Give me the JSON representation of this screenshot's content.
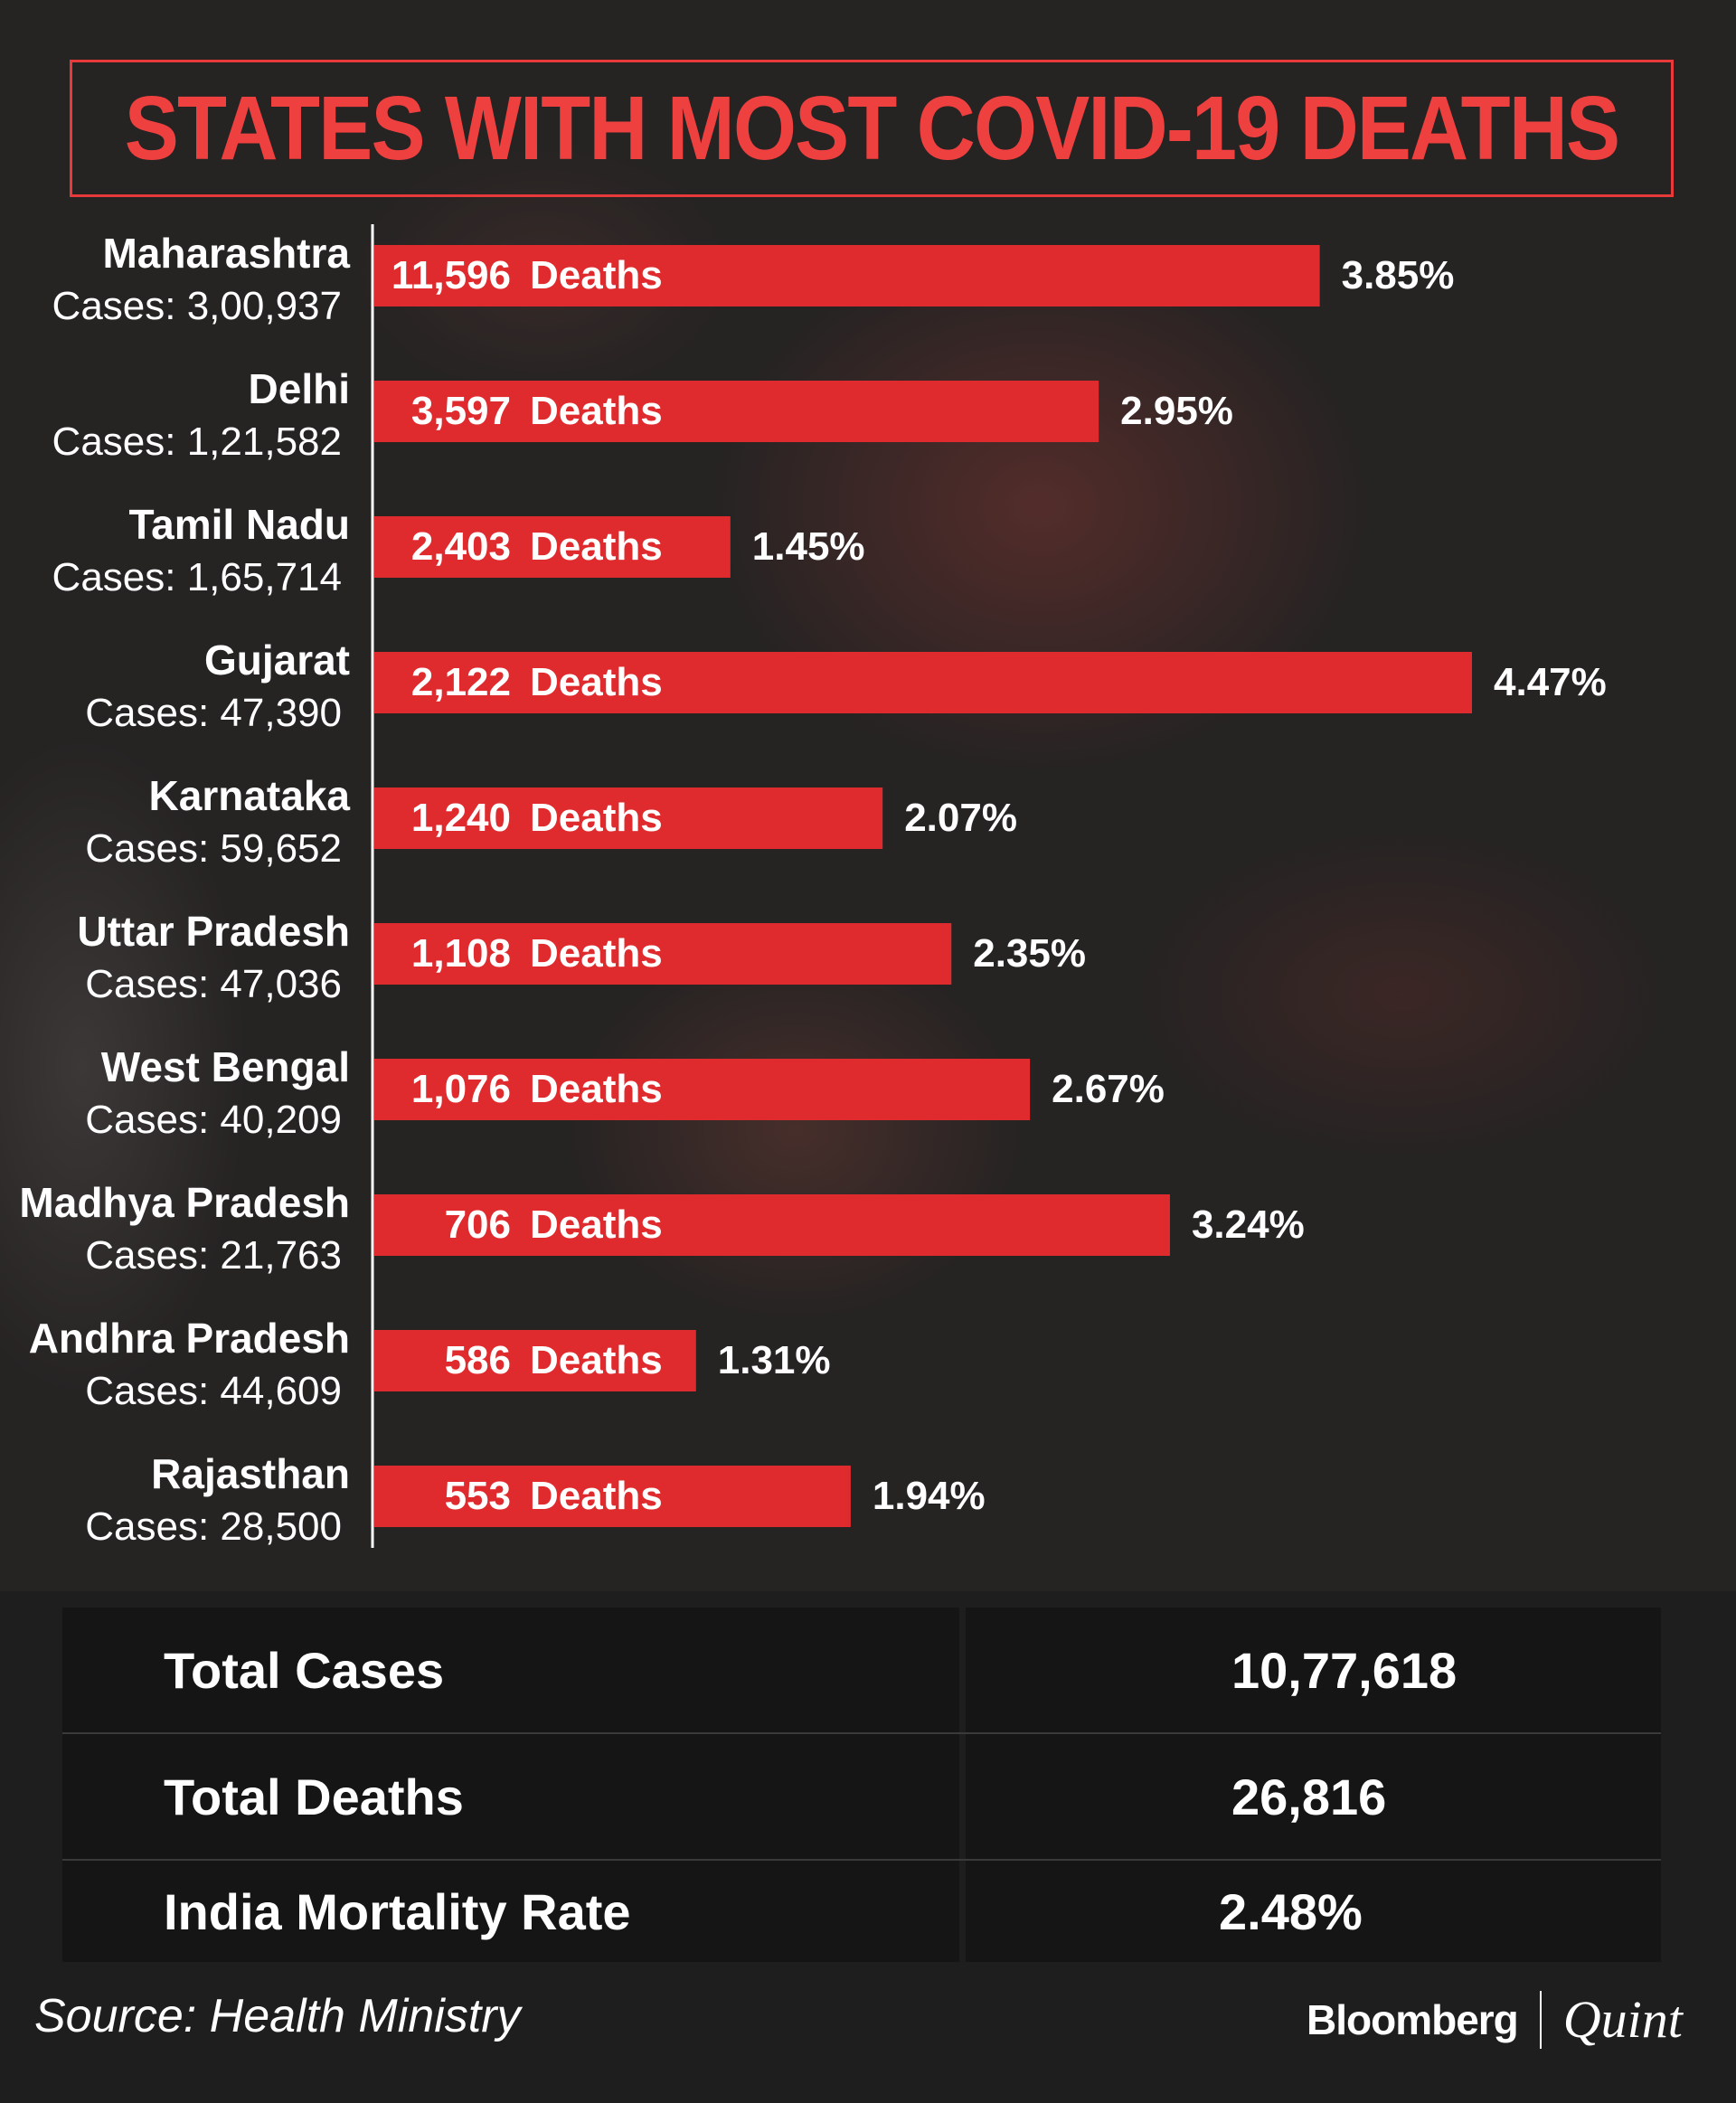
{
  "colors": {
    "bar": "#e02b2e",
    "title": "#ef4040",
    "background": "#1e1e1e"
  },
  "chart_data": {
    "type": "bar",
    "orientation": "horizontal",
    "title": "STATES WITH MOST COVID-19 DEATHS",
    "categories": [
      "Maharashtra",
      "Delhi",
      "Tamil Nadu",
      "Gujarat",
      "Karnataka",
      "Uttar Pradesh",
      "West Bengal",
      "Madhya Pradesh",
      "Andhra Pradesh",
      "Rajasthan"
    ],
    "cases_labels": [
      "Cases: 3,00,937",
      "Cases: 1,21,582",
      "Cases: 1,65,714",
      "Cases: 47,390",
      "Cases: 59,652",
      "Cases: 47,036",
      "Cases: 40,209",
      "Cases: 21,763",
      "Cases: 44,609",
      "Cases: 28,500"
    ],
    "deaths_labels": [
      "11,596",
      "3,597",
      "2,403",
      "2,122",
      "1,240",
      "1,108",
      "1,076",
      "706",
      "586",
      "553"
    ],
    "deaths_word": "Deaths",
    "series": [
      {
        "values": [
          3.85,
          2.95,
          1.45,
          4.47,
          2.07,
          2.35,
          2.67,
          3.24,
          1.31,
          1.94
        ]
      }
    ],
    "value_labels": [
      "3.85%",
      "2.95%",
      "1.45%",
      "4.47%",
      "2.07%",
      "2.35%",
      "2.67%",
      "3.24%",
      "1.31%",
      "1.94%"
    ],
    "xlim": [
      0,
      4.47
    ],
    "grid": false,
    "legend": "none"
  },
  "summary": {
    "rows": [
      {
        "label": "Total Cases",
        "value": "10,77,618"
      },
      {
        "label": "Total Deaths",
        "value": "26,816"
      },
      {
        "label": "India Mortality Rate",
        "value": "2.48%"
      }
    ]
  },
  "footer": {
    "source": "Source: Health Ministry",
    "brand_left": "Bloomberg",
    "brand_right": "Quint"
  }
}
